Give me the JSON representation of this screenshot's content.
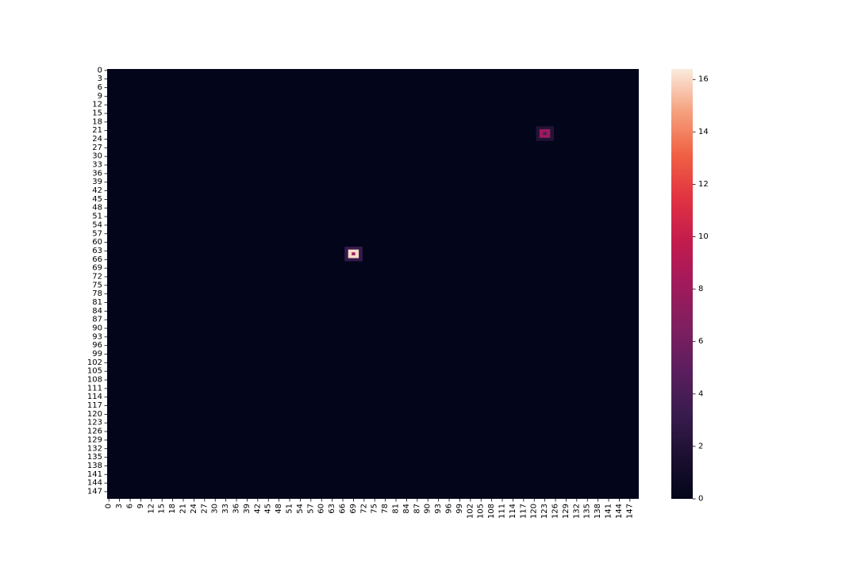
{
  "chart_data": {
    "type": "heatmap",
    "title": "",
    "xlabel": "",
    "ylabel": "",
    "grid": false,
    "rows": 150,
    "cols": 150,
    "tick_step": 3,
    "background_value": 0,
    "cells": [
      {
        "row": 20,
        "col": 121,
        "value": 2.0
      },
      {
        "row": 20,
        "col": 122,
        "value": 2.0
      },
      {
        "row": 20,
        "col": 123,
        "value": 2.0
      },
      {
        "row": 20,
        "col": 124,
        "value": 2.0
      },
      {
        "row": 20,
        "col": 125,
        "value": 2.0
      },
      {
        "row": 21,
        "col": 121,
        "value": 2.0
      },
      {
        "row": 21,
        "col": 122,
        "value": 8.0
      },
      {
        "row": 21,
        "col": 123,
        "value": 8.0
      },
      {
        "row": 21,
        "col": 124,
        "value": 8.0
      },
      {
        "row": 21,
        "col": 125,
        "value": 2.0
      },
      {
        "row": 22,
        "col": 121,
        "value": 2.0
      },
      {
        "row": 22,
        "col": 122,
        "value": 8.0
      },
      {
        "row": 22,
        "col": 123,
        "value": 4.0
      },
      {
        "row": 22,
        "col": 124,
        "value": 8.0
      },
      {
        "row": 22,
        "col": 125,
        "value": 2.0
      },
      {
        "row": 23,
        "col": 121,
        "value": 2.0
      },
      {
        "row": 23,
        "col": 122,
        "value": 8.0
      },
      {
        "row": 23,
        "col": 123,
        "value": 8.0
      },
      {
        "row": 23,
        "col": 124,
        "value": 8.0
      },
      {
        "row": 23,
        "col": 125,
        "value": 2.0
      },
      {
        "row": 24,
        "col": 121,
        "value": 2.0
      },
      {
        "row": 24,
        "col": 122,
        "value": 2.0
      },
      {
        "row": 24,
        "col": 123,
        "value": 2.0
      },
      {
        "row": 24,
        "col": 124,
        "value": 2.0
      },
      {
        "row": 24,
        "col": 125,
        "value": 2.0
      },
      {
        "row": 62,
        "col": 67,
        "value": 3.0
      },
      {
        "row": 62,
        "col": 68,
        "value": 3.0
      },
      {
        "row": 62,
        "col": 69,
        "value": 3.0
      },
      {
        "row": 62,
        "col": 70,
        "value": 3.0
      },
      {
        "row": 62,
        "col": 71,
        "value": 3.0
      },
      {
        "row": 63,
        "col": 67,
        "value": 3.0
      },
      {
        "row": 63,
        "col": 68,
        "value": 16.0
      },
      {
        "row": 63,
        "col": 69,
        "value": 16.0
      },
      {
        "row": 63,
        "col": 70,
        "value": 16.0
      },
      {
        "row": 63,
        "col": 71,
        "value": 3.0
      },
      {
        "row": 64,
        "col": 67,
        "value": 3.0
      },
      {
        "row": 64,
        "col": 68,
        "value": 16.0
      },
      {
        "row": 64,
        "col": 69,
        "value": 8.0
      },
      {
        "row": 64,
        "col": 70,
        "value": 16.0
      },
      {
        "row": 64,
        "col": 71,
        "value": 3.0
      },
      {
        "row": 65,
        "col": 67,
        "value": 3.0
      },
      {
        "row": 65,
        "col": 68,
        "value": 16.0
      },
      {
        "row": 65,
        "col": 69,
        "value": 16.0
      },
      {
        "row": 65,
        "col": 70,
        "value": 16.0
      },
      {
        "row": 65,
        "col": 71,
        "value": 3.0
      },
      {
        "row": 66,
        "col": 67,
        "value": 3.0
      },
      {
        "row": 66,
        "col": 68,
        "value": 3.0
      },
      {
        "row": 66,
        "col": 69,
        "value": 3.0
      },
      {
        "row": 66,
        "col": 70,
        "value": 3.0
      },
      {
        "row": 66,
        "col": 71,
        "value": 3.0
      }
    ],
    "colorbar": {
      "colormap": "rocket",
      "vmin": 0,
      "vmax": 16.4,
      "ticks": [
        0,
        2,
        4,
        6,
        8,
        10,
        12,
        14,
        16
      ],
      "tick_labels": [
        "0",
        "2",
        "4",
        "6",
        "8",
        "10",
        "12",
        "14",
        "16"
      ]
    }
  }
}
